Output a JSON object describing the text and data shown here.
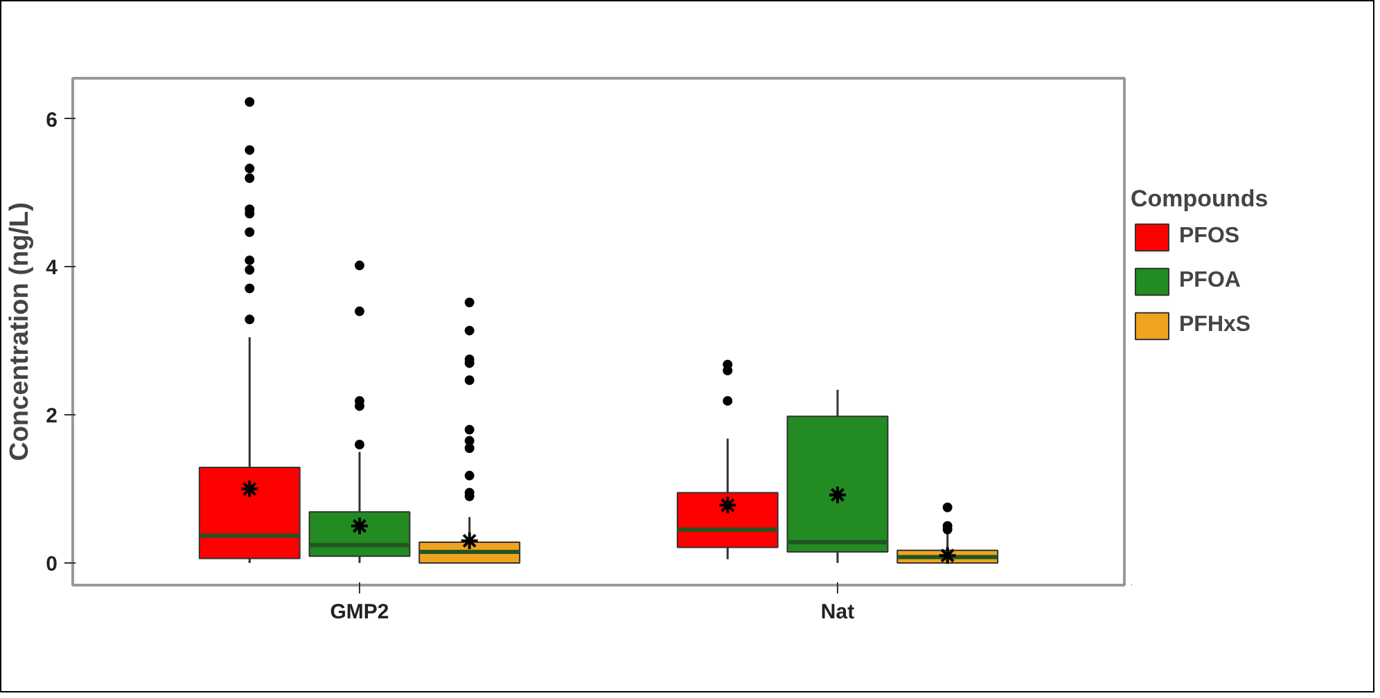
{
  "chart_data": {
    "type": "box",
    "ylabel": "Concentration (ng/L)",
    "legend_title": "Compounds",
    "legend": "right",
    "grid": false,
    "categories": [
      "GMP2",
      "Nat"
    ],
    "ylim": [
      -0.3,
      6.55
    ],
    "yticks": [
      0,
      2,
      4,
      6
    ],
    "series": [
      {
        "name": "PFOS",
        "color": "#ff0000",
        "boxes": [
          {
            "low": 0,
            "q1": 0.06,
            "median": 0.37,
            "q3": 1.29,
            "high": 3.05,
            "mean": 1.0,
            "outliers": [
              6.23,
              5.58,
              5.33,
              5.2,
              4.78,
              4.72,
              4.47,
              4.09,
              3.96,
              3.71,
              3.29
            ]
          },
          {
            "low": 0.05,
            "q1": 0.21,
            "median": 0.45,
            "q3": 0.95,
            "high": 1.68,
            "mean": 0.78,
            "outliers": [
              2.68,
              2.6,
              2.19
            ]
          }
        ]
      },
      {
        "name": "PFOA",
        "color": "#228b22",
        "boxes": [
          {
            "low": 0,
            "q1": 0.09,
            "median": 0.24,
            "q3": 0.69,
            "high": 1.5,
            "mean": 0.5,
            "outliers": [
              4.02,
              3.4,
              2.19,
              2.12,
              1.6
            ]
          },
          {
            "low": 0,
            "q1": 0.15,
            "median": 0.28,
            "q3": 1.98,
            "high": 2.34,
            "mean": 0.92
          }
        ]
      },
      {
        "name": "PFHxS",
        "color": "#f0a31e",
        "boxes": [
          {
            "low": 0,
            "q1": 0,
            "median": 0.15,
            "q3": 0.28,
            "high": 0.62,
            "mean": 0.3,
            "outliers": [
              3.52,
              3.14,
              2.75,
              2.7,
              2.47,
              1.8,
              1.65,
              1.55,
              1.18,
              0.95,
              0.9
            ]
          },
          {
            "low": 0,
            "q1": 0,
            "median": 0.08,
            "q3": 0.17,
            "high": 0.4,
            "mean": 0.1,
            "outliers": [
              0.75,
              0.5,
              0.45
            ]
          }
        ]
      }
    ]
  }
}
